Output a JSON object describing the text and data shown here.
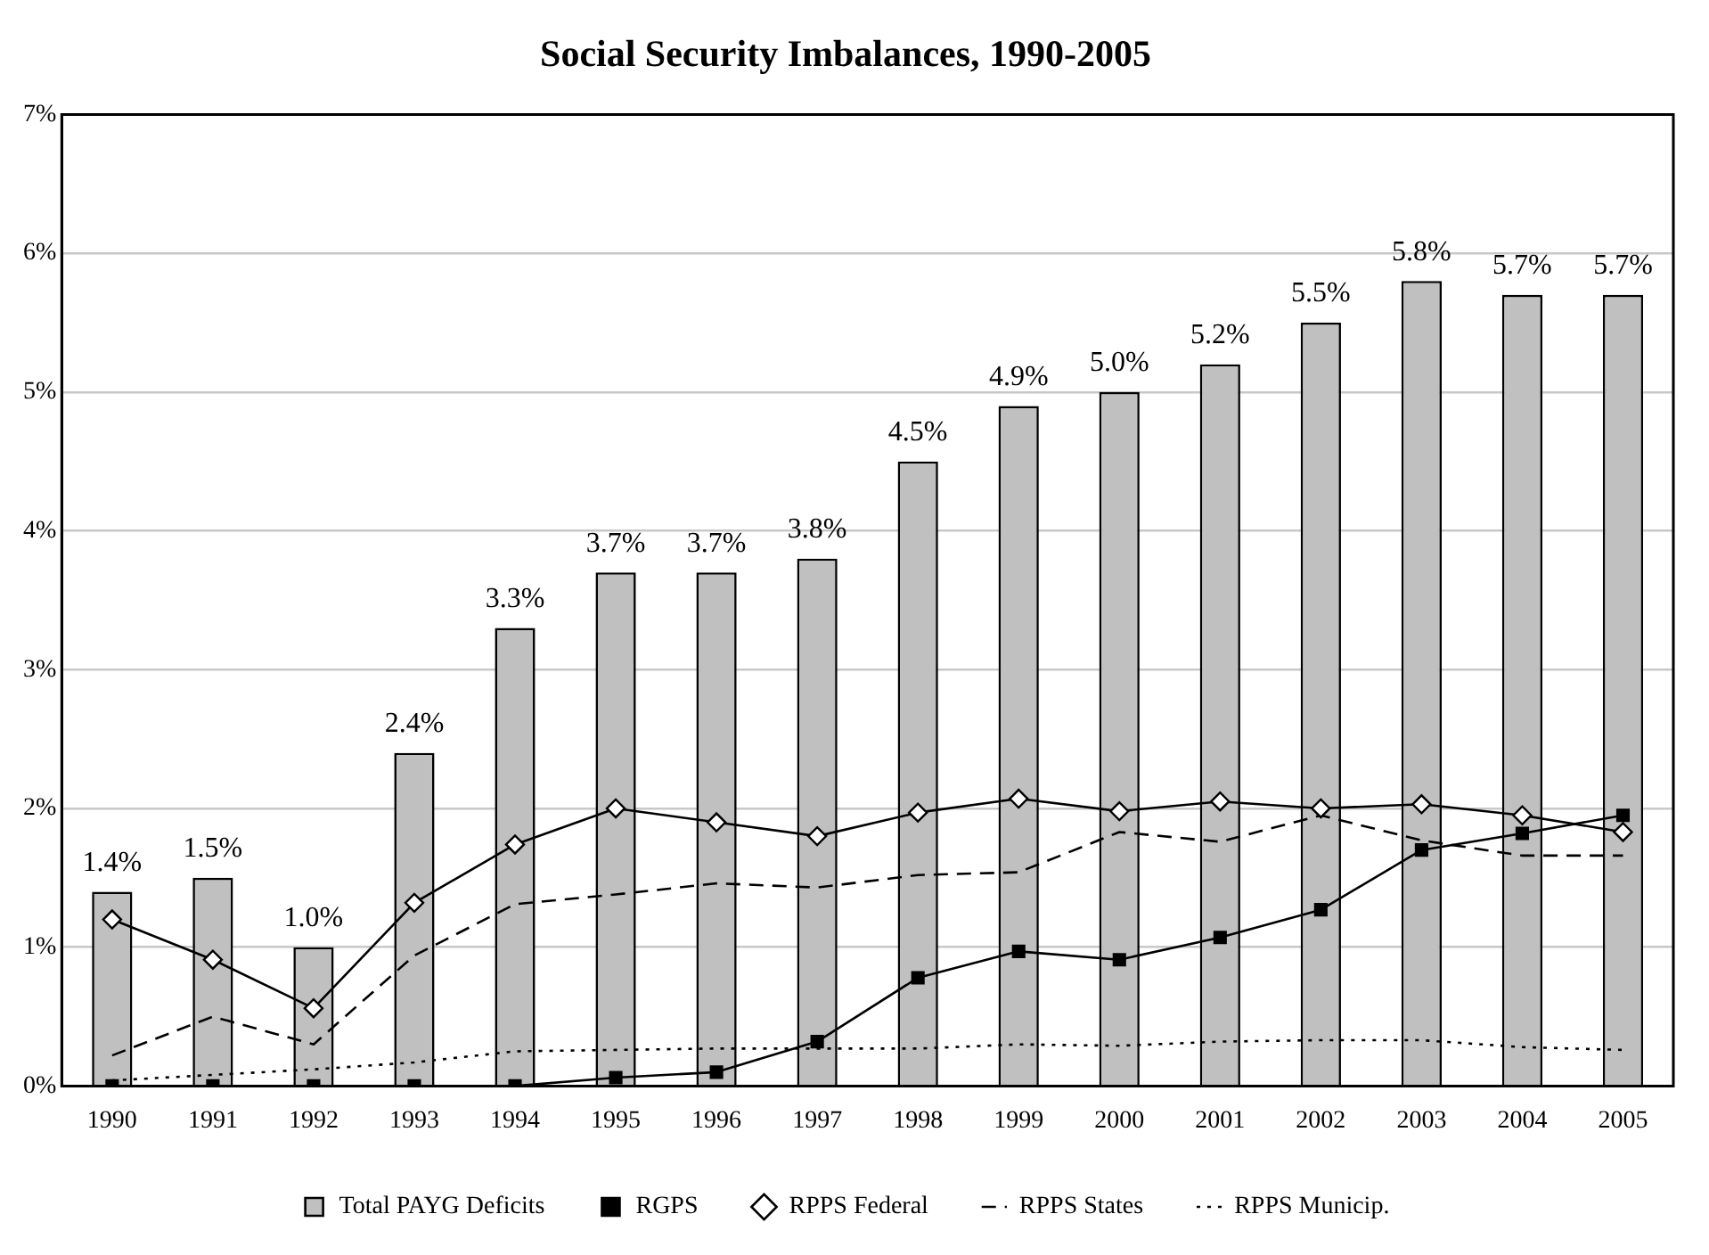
{
  "chart_data": {
    "type": "bar",
    "title": "Social Security Imbalances, 1990-2005",
    "categories": [
      "1990",
      "1991",
      "1992",
      "1993",
      "1994",
      "1995",
      "1996",
      "1997",
      "1998",
      "1999",
      "2000",
      "2001",
      "2002",
      "2003",
      "2004",
      "2005"
    ],
    "series": [
      {
        "name": "Total PAYG Deficits",
        "color": "#c0c0c0",
        "values": [
          1.4,
          1.5,
          1.0,
          2.4,
          3.3,
          3.7,
          3.7,
          3.8,
          4.5,
          4.9,
          5.0,
          5.2,
          5.5,
          5.8,
          5.7,
          5.7
        ],
        "value_labels": [
          "1.4%",
          "1.5%",
          "1.0%",
          "2.4%",
          "3.3%",
          "3.7%",
          "3.7%",
          "3.8%",
          "4.5%",
          "4.9%",
          "5.0%",
          "5.2%",
          "5.5%",
          "5.8%",
          "5.7%",
          "5.7%"
        ]
      },
      {
        "name": "RGPS",
        "type": "line",
        "color": "#000000",
        "marker": "square",
        "line_style": "solid",
        "values": [
          0,
          0,
          0,
          0,
          0,
          0.06,
          0.1,
          0.32,
          0.78,
          0.97,
          0.91,
          1.07,
          1.27,
          1.7,
          1.82,
          1.95
        ]
      },
      {
        "name": "RPPS Federal",
        "type": "line",
        "color": "#000000",
        "marker": "diamond",
        "line_style": "solid",
        "values": [
          1.2,
          0.91,
          0.56,
          1.32,
          1.74,
          2.0,
          1.9,
          1.8,
          1.97,
          2.07,
          1.98,
          2.05,
          2.0,
          2.03,
          1.95,
          1.83
        ]
      },
      {
        "name": "RPPS States",
        "type": "line",
        "color": "#000000",
        "marker": "none",
        "line_style": "dashed",
        "values": [
          0.22,
          0.5,
          0.3,
          0.94,
          1.31,
          1.38,
          1.46,
          1.43,
          1.52,
          1.54,
          1.83,
          1.76,
          1.95,
          1.77,
          1.66,
          1.66
        ]
      },
      {
        "name": "RPPS Municip.",
        "type": "line",
        "color": "#000000",
        "marker": "none",
        "line_style": "dotted",
        "values": [
          0.04,
          0.08,
          0.12,
          0.17,
          0.25,
          0.26,
          0.27,
          0.27,
          0.27,
          0.3,
          0.29,
          0.32,
          0.33,
          0.33,
          0.28,
          0.26
        ]
      }
    ],
    "ylim": [
      0,
      7
    ],
    "yticks": [
      {
        "value": 0,
        "label": "0%"
      },
      {
        "value": 1,
        "label": "1%"
      },
      {
        "value": 2,
        "label": "2%"
      },
      {
        "value": 3,
        "label": "3%"
      },
      {
        "value": 4,
        "label": "4%"
      },
      {
        "value": 5,
        "label": "5%"
      },
      {
        "value": 6,
        "label": "6%"
      },
      {
        "value": 7,
        "label": "7%"
      }
    ],
    "grid": "y",
    "legend": "bottom"
  }
}
